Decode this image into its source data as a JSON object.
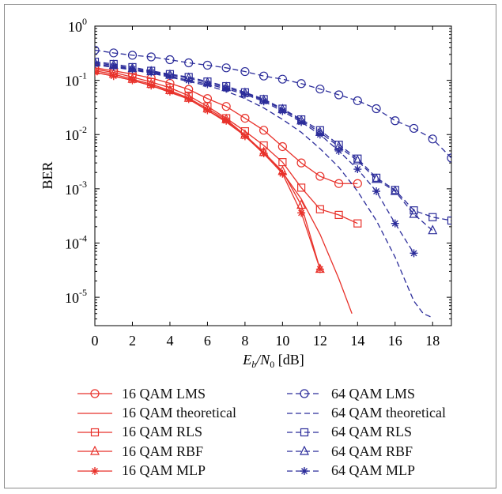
{
  "chart_data": {
    "type": "line",
    "xlabel_main": "E",
    "xlabel_sub1": "b",
    "xlabel_mid": "/N",
    "xlabel_sub2": "0",
    "xlabel_unit": " [dB]",
    "ylabel": "BER",
    "xlim": [
      0,
      19
    ],
    "ylim": [
      3e-06,
      1
    ],
    "yscale": "log",
    "xticks": [
      0,
      2,
      4,
      6,
      8,
      10,
      12,
      14,
      16,
      18
    ],
    "ytick_exponents": [
      -5,
      -4,
      -3,
      -2,
      -1,
      0
    ],
    "ytick_base": "10",
    "series": [
      {
        "name": "16 QAM LMS",
        "color": "#e8312a",
        "dash": false,
        "marker": "circle",
        "x": [
          0,
          1,
          2,
          3,
          4,
          5,
          6,
          7,
          8,
          9,
          10,
          11,
          12,
          13,
          14
        ],
        "y": [
          0.17,
          0.15,
          0.13,
          0.11,
          0.088,
          0.068,
          0.046,
          0.033,
          0.02,
          0.012,
          0.006,
          0.003,
          0.0017,
          0.00125,
          0.00125
        ]
      },
      {
        "name": "16 QAM theoretical",
        "color": "#e8312a",
        "dash": false,
        "marker": "none",
        "x": [
          0,
          1,
          2,
          3,
          4,
          5,
          6,
          7,
          8,
          9,
          10,
          11,
          12,
          13,
          13.7
        ],
        "y": [
          0.14,
          0.12,
          0.1,
          0.08,
          0.06,
          0.045,
          0.028,
          0.017,
          0.0095,
          0.0044,
          0.002,
          0.00065,
          0.000145,
          2.2e-05,
          5e-06
        ]
      },
      {
        "name": "16 QAM RLS",
        "color": "#e8312a",
        "dash": false,
        "marker": "square",
        "x": [
          0,
          1,
          2,
          3,
          4,
          5,
          6,
          7,
          8,
          9,
          10,
          11,
          12,
          13,
          14
        ],
        "y": [
          0.16,
          0.14,
          0.115,
          0.093,
          0.073,
          0.052,
          0.033,
          0.02,
          0.0115,
          0.0063,
          0.0031,
          0.00105,
          0.00042,
          0.00033,
          0.00023
        ]
      },
      {
        "name": "16 QAM RBF",
        "color": "#e8312a",
        "dash": false,
        "marker": "triangle",
        "x": [
          0,
          1,
          2,
          3,
          4,
          5,
          6,
          7,
          8,
          9,
          10,
          11,
          12
        ],
        "y": [
          0.15,
          0.13,
          0.105,
          0.085,
          0.065,
          0.047,
          0.03,
          0.019,
          0.0098,
          0.0047,
          0.0021,
          0.0005,
          3.3e-05
        ]
      },
      {
        "name": "16 QAM MLP",
        "color": "#e8312a",
        "dash": false,
        "marker": "star",
        "x": [
          0,
          1,
          2,
          3,
          4,
          5,
          6,
          7,
          8,
          9,
          10,
          11,
          12
        ],
        "y": [
          0.14,
          0.12,
          0.1,
          0.08,
          0.062,
          0.045,
          0.028,
          0.018,
          0.0093,
          0.0045,
          0.0019,
          0.00036,
          3.3e-05
        ]
      },
      {
        "name": "64 QAM LMS",
        "color": "#2b2c9a",
        "dash": true,
        "marker": "circle",
        "x": [
          0,
          1,
          2,
          3,
          4,
          5,
          6,
          7,
          8,
          9,
          10,
          11,
          12,
          13,
          14,
          15,
          16,
          17,
          18,
          19
        ],
        "y": [
          0.36,
          0.32,
          0.29,
          0.27,
          0.24,
          0.21,
          0.19,
          0.17,
          0.145,
          0.12,
          0.105,
          0.087,
          0.069,
          0.054,
          0.042,
          0.03,
          0.018,
          0.013,
          0.0083,
          0.0037
        ]
      },
      {
        "name": "64 QAM theoretical",
        "color": "#2b2c9a",
        "dash": true,
        "marker": "none",
        "x": [
          0,
          1,
          2,
          3,
          4,
          5,
          6,
          7,
          8,
          9,
          10,
          11,
          12,
          13,
          14,
          15,
          16,
          17,
          17.5,
          18
        ],
        "y": [
          0.19,
          0.175,
          0.155,
          0.135,
          0.115,
          0.095,
          0.08,
          0.063,
          0.046,
          0.031,
          0.019,
          0.011,
          0.0055,
          0.0025,
          0.0009,
          0.00026,
          5.5e-05,
          8.5e-06,
          5e-06,
          4.2e-06
        ]
      },
      {
        "name": "64 QAM RLS",
        "color": "#2b2c9a",
        "dash": true,
        "marker": "square",
        "x": [
          0,
          1,
          2,
          3,
          4,
          5,
          6,
          7,
          8,
          9,
          10,
          11,
          12,
          13,
          14,
          15,
          16,
          17,
          18,
          19
        ],
        "y": [
          0.22,
          0.2,
          0.175,
          0.15,
          0.13,
          0.115,
          0.095,
          0.078,
          0.06,
          0.045,
          0.03,
          0.019,
          0.012,
          0.0065,
          0.0036,
          0.0016,
          0.00095,
          0.0004,
          0.0003,
          0.00026
        ]
      },
      {
        "name": "64 QAM RBF",
        "color": "#2b2c9a",
        "dash": true,
        "marker": "triangle",
        "x": [
          0,
          1,
          2,
          3,
          4,
          5,
          6,
          7,
          8,
          9,
          10,
          11,
          12,
          13,
          14,
          15,
          16,
          17,
          18
        ],
        "y": [
          0.21,
          0.19,
          0.165,
          0.145,
          0.125,
          0.11,
          0.09,
          0.074,
          0.058,
          0.043,
          0.029,
          0.018,
          0.011,
          0.006,
          0.0033,
          0.0015,
          0.0009,
          0.00034,
          0.00017
        ]
      },
      {
        "name": "64 QAM MLP",
        "color": "#2b2c9a",
        "dash": true,
        "marker": "star",
        "x": [
          0,
          1,
          2,
          3,
          4,
          5,
          6,
          7,
          8,
          9,
          10,
          11,
          12,
          13,
          14,
          15,
          16,
          17
        ],
        "y": [
          0.2,
          0.18,
          0.16,
          0.14,
          0.12,
          0.1,
          0.085,
          0.07,
          0.055,
          0.041,
          0.027,
          0.017,
          0.01,
          0.005,
          0.0023,
          0.0009,
          0.00023,
          6.5e-05
        ]
      }
    ]
  }
}
